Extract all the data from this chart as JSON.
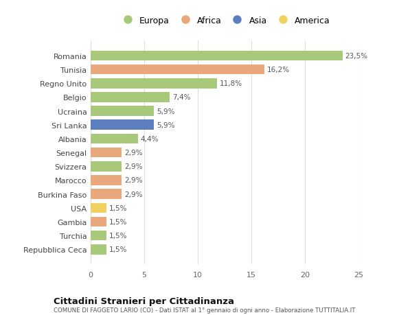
{
  "countries": [
    "Repubblica Ceca",
    "Turchia",
    "Gambia",
    "USA",
    "Burkina Faso",
    "Marocco",
    "Svizzera",
    "Senegal",
    "Albania",
    "Sri Lanka",
    "Ucraina",
    "Belgio",
    "Regno Unito",
    "Tunisia",
    "Romania"
  ],
  "values": [
    1.5,
    1.5,
    1.5,
    1.5,
    2.9,
    2.9,
    2.9,
    2.9,
    4.4,
    5.9,
    5.9,
    7.4,
    11.8,
    16.2,
    23.5
  ],
  "labels": [
    "1,5%",
    "1,5%",
    "1,5%",
    "1,5%",
    "2,9%",
    "2,9%",
    "2,9%",
    "2,9%",
    "4,4%",
    "5,9%",
    "5,9%",
    "7,4%",
    "11,8%",
    "16,2%",
    "23,5%"
  ],
  "continents": [
    "Europa",
    "Europa",
    "Africa",
    "America",
    "Africa",
    "Africa",
    "Europa",
    "Africa",
    "Europa",
    "Asia",
    "Europa",
    "Europa",
    "Europa",
    "Africa",
    "Europa"
  ],
  "continent_colors": {
    "Europa": "#a8c87a",
    "Africa": "#e8a87c",
    "Asia": "#5b7fbf",
    "America": "#f0d060"
  },
  "legend_order": [
    "Europa",
    "Africa",
    "Asia",
    "America"
  ],
  "title": "Cittadini Stranieri per Cittadinanza",
  "subtitle": "COMUNE DI FAGGETO LARIO (CO) - Dati ISTAT al 1° gennaio di ogni anno - Elaborazione TUTTITALIA.IT",
  "xlim": [
    0,
    25
  ],
  "xticks": [
    0,
    5,
    10,
    15,
    20,
    25
  ],
  "background_color": "#ffffff",
  "grid_color": "#dddddd",
  "bar_height": 0.72
}
